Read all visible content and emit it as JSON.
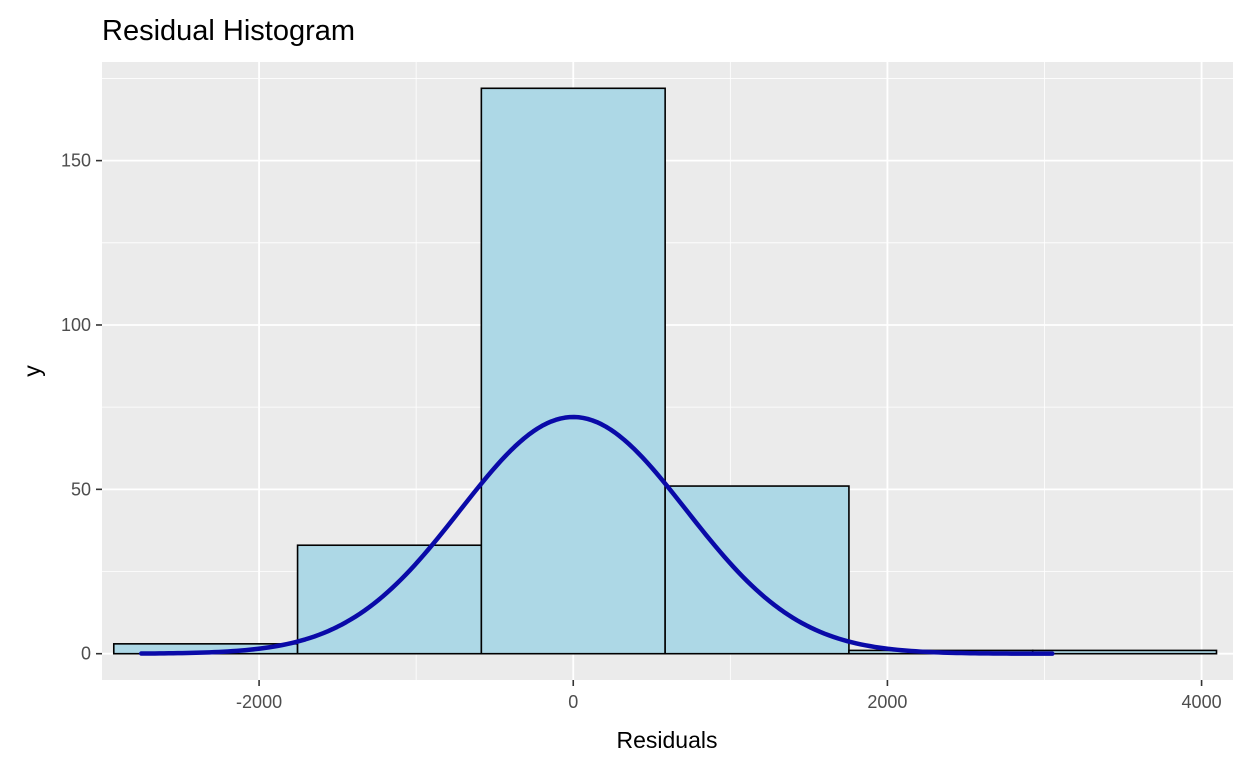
{
  "chart_data": {
    "type": "bar",
    "title": "Residual Histogram",
    "xlabel": "Residuals",
    "ylabel": "y",
    "xlim": [
      -3000,
      4200
    ],
    "ylim": [
      -8,
      180
    ],
    "grid": true,
    "x_ticks": [
      {
        "value": -2000,
        "label": "-2000"
      },
      {
        "value": 0,
        "label": "0"
      },
      {
        "value": 2000,
        "label": "2000"
      },
      {
        "value": 4000,
        "label": "4000"
      }
    ],
    "y_ticks": [
      {
        "value": 0,
        "label": "0"
      },
      {
        "value": 50,
        "label": "50"
      },
      {
        "value": 100,
        "label": "100"
      },
      {
        "value": 150,
        "label": "150"
      }
    ],
    "bins": [
      {
        "x0": -2925,
        "x1": -1755,
        "count": 3
      },
      {
        "x0": -1755,
        "x1": -585,
        "count": 33
      },
      {
        "x0": -585,
        "x1": 585,
        "count": 172
      },
      {
        "x0": 585,
        "x1": 1755,
        "count": 51
      },
      {
        "x0": 1755,
        "x1": 2925,
        "count": 1
      },
      {
        "x0": 2925,
        "x1": 4095,
        "count": 1
      }
    ],
    "density_curve": {
      "type": "line",
      "x_range": [
        -2750,
        3050
      ],
      "peak": {
        "x": 0,
        "y": 72
      },
      "sd": 720,
      "color": "#0a0aa8"
    },
    "colors": {
      "panel": "#ebebeb",
      "grid": "#ffffff",
      "bar_fill": "#add8e6",
      "bar_stroke": "#000000"
    }
  }
}
